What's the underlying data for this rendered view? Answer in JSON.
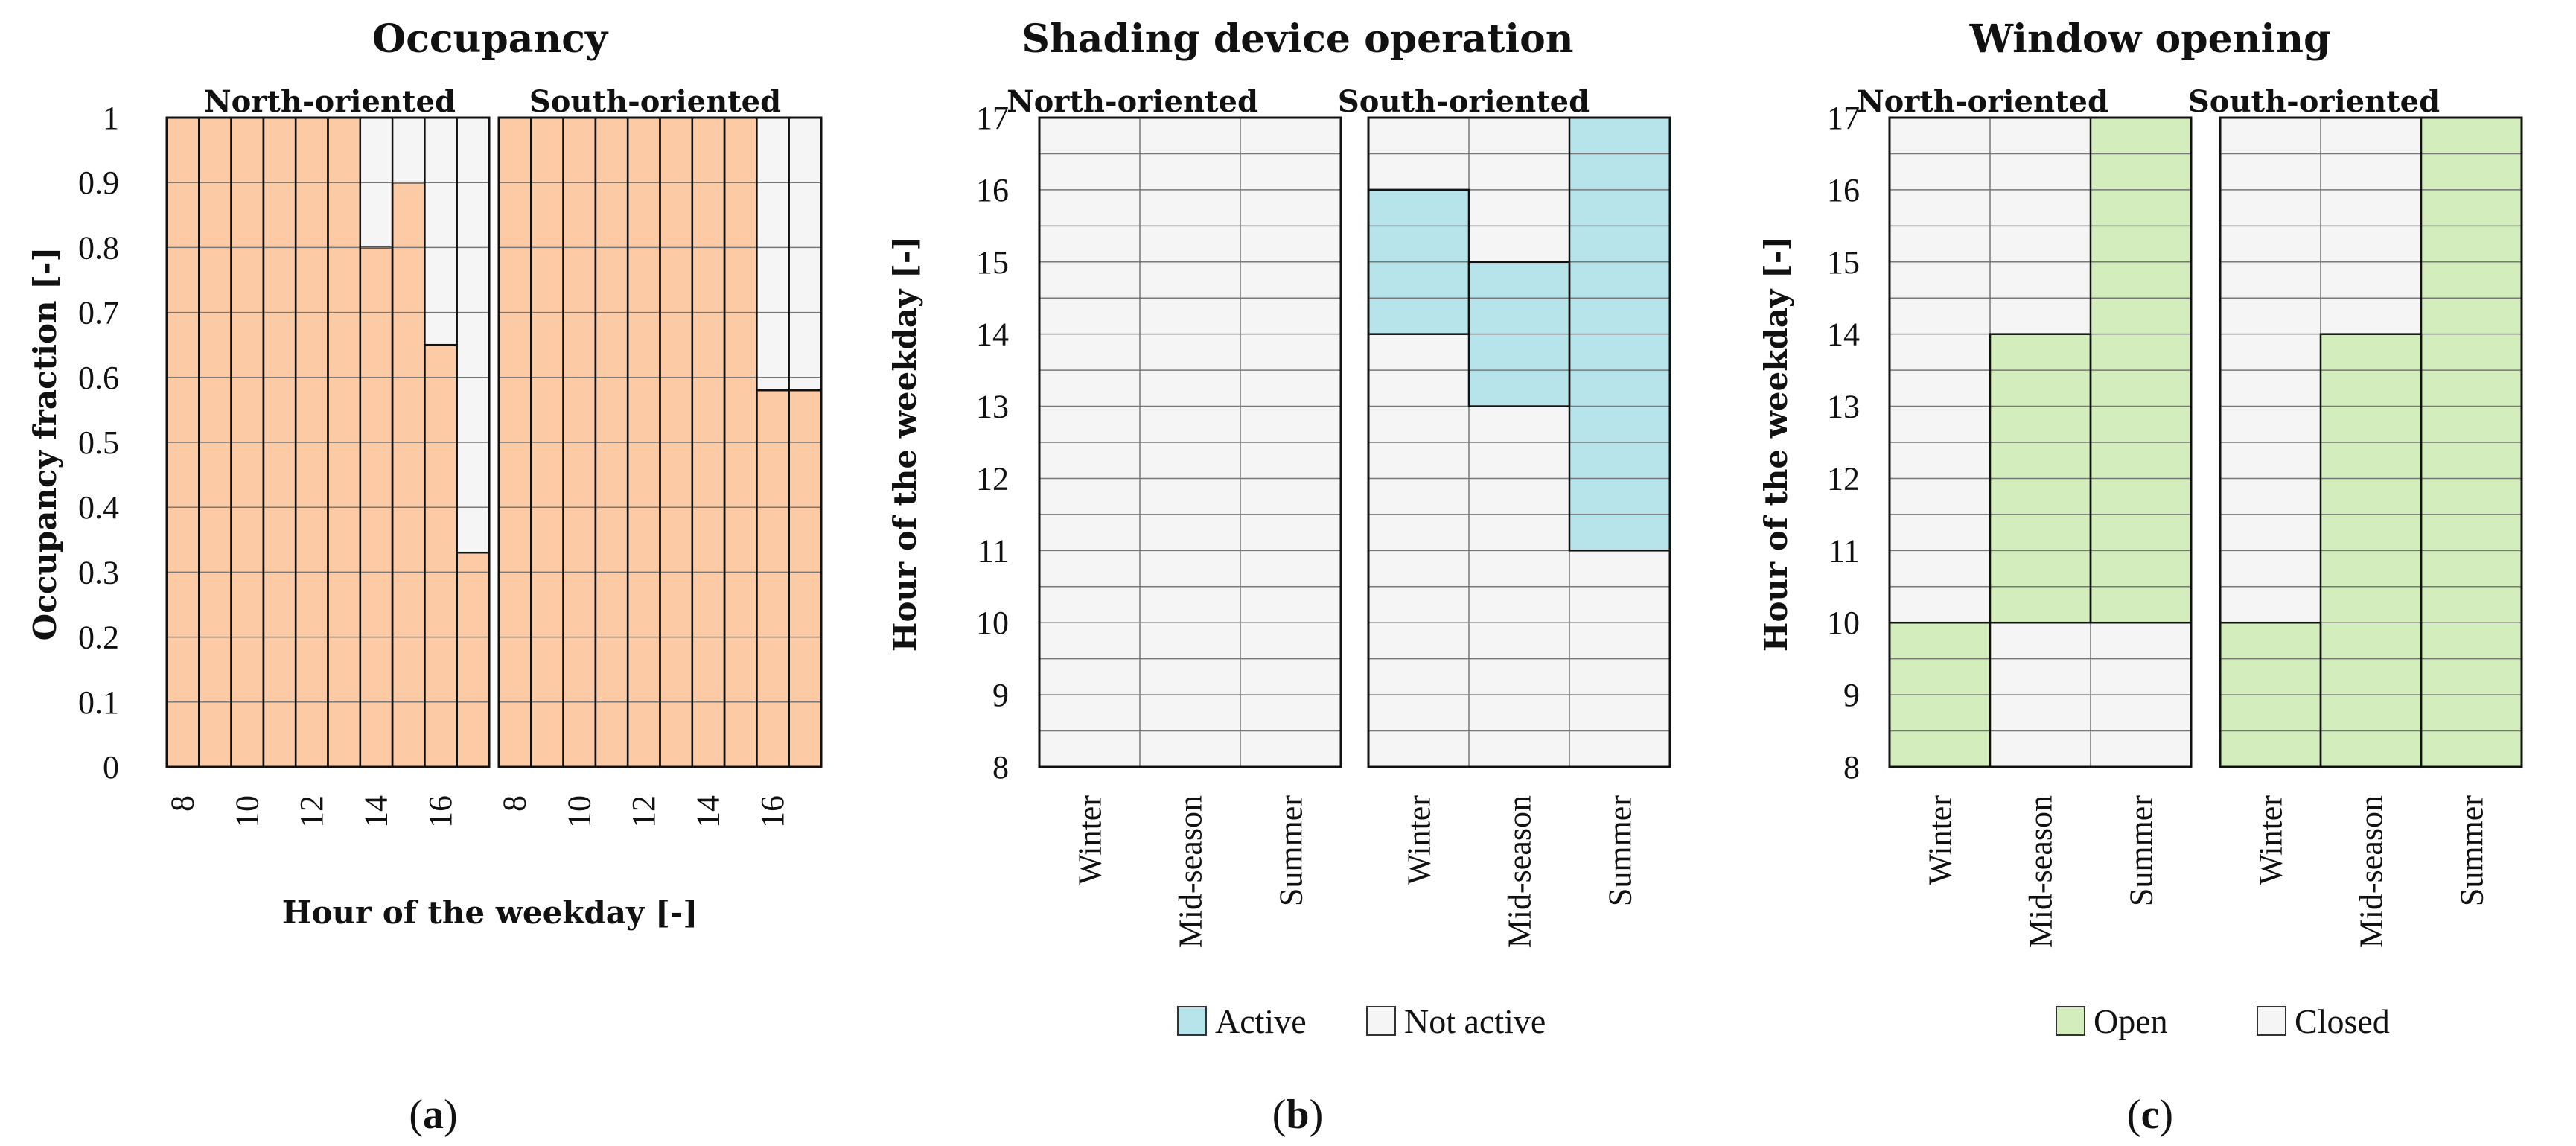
{
  "colors": {
    "occupied": "#FCCBA5",
    "empty": "#F5F5F5",
    "active": "#B7E3EB",
    "open": "#D3EDBD",
    "grid": "#555555",
    "frame": "#111111"
  },
  "chart_data": [
    {
      "id": "a",
      "type": "bar",
      "title": "Occupancy",
      "caption_open": "(",
      "caption_letter": "a",
      "caption_close": ")",
      "xlabel": "Hour of the weekday [-]",
      "ylabel": "Occupancy fraction [-]",
      "ylim": [
        0,
        1
      ],
      "yticks": [
        "0",
        "0.1",
        "0.2",
        "0.3",
        "0.4",
        "0.5",
        "0.6",
        "0.7",
        "0.8",
        "0.9",
        "1"
      ],
      "hours": [
        8,
        9,
        10,
        11,
        12,
        13,
        14,
        15,
        16,
        17
      ],
      "xtick_labels": [
        "8",
        "10",
        "12",
        "14",
        "16"
      ],
      "panels": [
        {
          "name": "North-oriented",
          "values": [
            1,
            1,
            1,
            1,
            1,
            1,
            0.8,
            0.9,
            0.65,
            0.33
          ]
        },
        {
          "name": "South-oriented",
          "values": [
            1,
            1,
            1,
            1,
            1,
            1,
            1,
            1,
            0.58,
            0.58
          ]
        }
      ]
    },
    {
      "id": "b",
      "type": "heatmap",
      "title": "Shading device operation",
      "caption_open": "(",
      "caption_letter": "b",
      "caption_close": ")",
      "ylabel": "Hour of the weekday [-]",
      "yticks": [
        "8",
        "9",
        "10",
        "11",
        "12",
        "13",
        "14",
        "15",
        "16",
        "17"
      ],
      "ylim": [
        8,
        17
      ],
      "seasons": [
        "Winter",
        "Mid-season",
        "Summer"
      ],
      "legend": [
        {
          "label": "Active",
          "color": "#B7E3EB"
        },
        {
          "label": "Not active",
          "color": "#F5F5F5"
        }
      ],
      "panels": [
        {
          "name": "North-oriented",
          "active_hours": [
            null,
            null,
            null
          ]
        },
        {
          "name": "South-oriented",
          "active_hours": [
            [
              14,
              16
            ],
            [
              13,
              15
            ],
            [
              11,
              17
            ]
          ]
        }
      ]
    },
    {
      "id": "c",
      "type": "heatmap",
      "title": "Window opening",
      "caption_open": "(",
      "caption_letter": "c",
      "caption_close": ")",
      "ylabel": "Hour of the weekday [-]",
      "yticks": [
        "8",
        "9",
        "10",
        "11",
        "12",
        "13",
        "14",
        "15",
        "16",
        "17"
      ],
      "ylim": [
        8,
        17
      ],
      "seasons": [
        "Winter",
        "Mid-season",
        "Summer"
      ],
      "legend": [
        {
          "label": "Open",
          "color": "#D3EDBD"
        },
        {
          "label": "Closed",
          "color": "#F5F5F5"
        }
      ],
      "panels": [
        {
          "name": "North-oriented",
          "open_hours": [
            [
              8,
              10
            ],
            [
              10,
              14
            ],
            [
              10,
              17
            ]
          ]
        },
        {
          "name": "South-oriented",
          "open_hours": [
            [
              8,
              10
            ],
            [
              8,
              14
            ],
            [
              8,
              17
            ]
          ]
        }
      ]
    }
  ]
}
